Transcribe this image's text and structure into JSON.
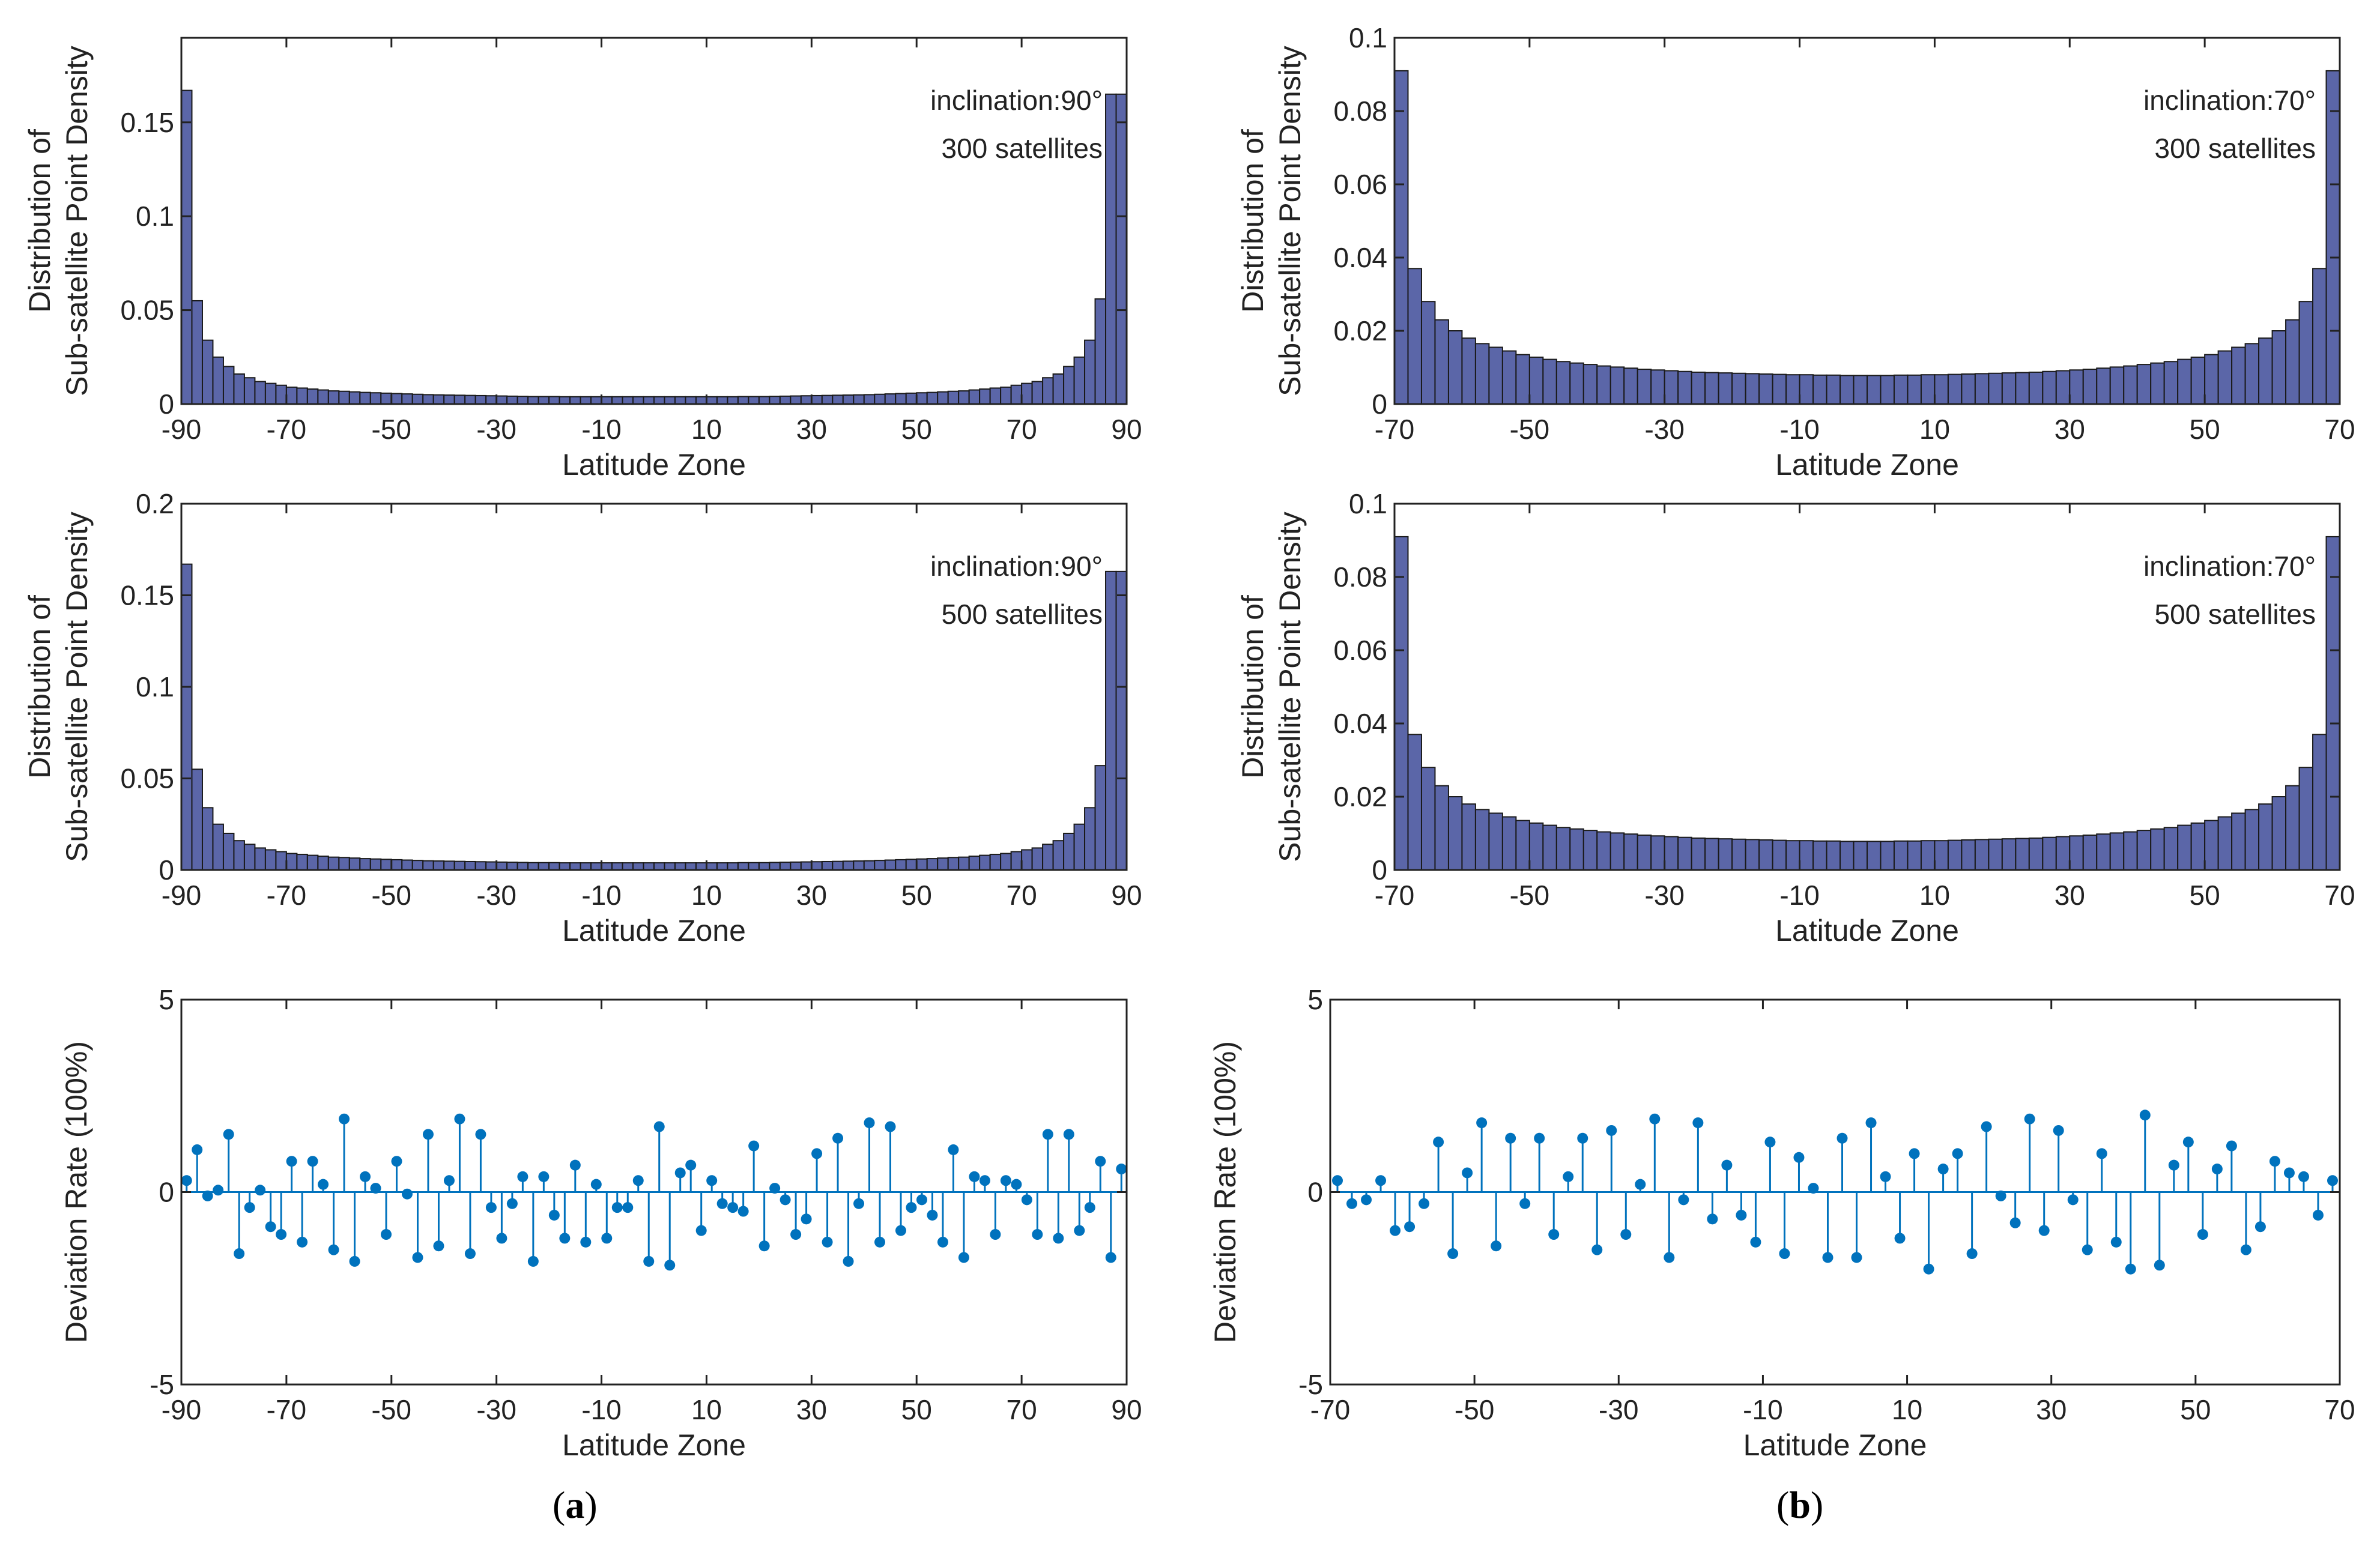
{
  "figure": {
    "panel_labels": [
      {
        "open": "(",
        "letter": "a",
        "close": ")"
      },
      {
        "open": "(",
        "letter": "b",
        "close": ")"
      }
    ]
  },
  "colors": {
    "bar_fill": "#5B66A8",
    "bar_edge": "#1a1a1a",
    "stem": "#0072BD",
    "axis": "#222222"
  },
  "chart_data": [
    {
      "id": "a1",
      "type": "bar",
      "ylabel_lines": [
        "Distribution of",
        "Sub-satellite Point Density"
      ],
      "xlabel": "Latitude Zone",
      "annotations": [
        "inclination:90°",
        "300 satellites"
      ],
      "xlim": [
        -90,
        90
      ],
      "ylim": [
        0,
        0.195
      ],
      "xticks": [
        -90,
        -70,
        -50,
        -30,
        -10,
        10,
        30,
        50,
        70,
        90
      ],
      "xtick_labels": [
        "-90",
        "-70",
        "-50",
        "-30",
        "-10",
        "10",
        "30",
        "50",
        "70",
        "90"
      ],
      "yticks": [
        0,
        0.05,
        0.1,
        0.15
      ],
      "ytick_labels": [
        "0",
        "0.05",
        "0.1",
        "0.15"
      ],
      "x": [
        -89,
        -87,
        -85,
        -83,
        -81,
        -79,
        -77,
        -75,
        -73,
        -71,
        -69,
        -67,
        -65,
        -63,
        -61,
        -59,
        -57,
        -55,
        -53,
        -51,
        -49,
        -47,
        -45,
        -43,
        -41,
        -39,
        -37,
        -35,
        -33,
        -31,
        -29,
        -27,
        -25,
        -23,
        -21,
        -19,
        -17,
        -15,
        -13,
        -11,
        -9,
        -7,
        -5,
        -3,
        -1,
        1,
        3,
        5,
        7,
        9,
        11,
        13,
        15,
        17,
        19,
        21,
        23,
        25,
        27,
        29,
        31,
        33,
        35,
        37,
        39,
        41,
        43,
        45,
        47,
        49,
        51,
        53,
        55,
        57,
        59,
        61,
        63,
        65,
        67,
        69,
        71,
        73,
        75,
        77,
        79,
        81,
        83,
        85,
        87,
        89
      ],
      "values": [
        0.167,
        0.055,
        0.034,
        0.025,
        0.02,
        0.016,
        0.014,
        0.012,
        0.011,
        0.01,
        0.009,
        0.0085,
        0.008,
        0.0075,
        0.007,
        0.0068,
        0.0065,
        0.0062,
        0.006,
        0.0058,
        0.0056,
        0.0054,
        0.0052,
        0.005,
        0.0049,
        0.0048,
        0.0047,
        0.0046,
        0.0045,
        0.0044,
        0.0043,
        0.0042,
        0.0041,
        0.004,
        0.004,
        0.004,
        0.0039,
        0.0039,
        0.0039,
        0.0039,
        0.0039,
        0.0039,
        0.0039,
        0.0039,
        0.0039,
        0.0039,
        0.0039,
        0.0039,
        0.0039,
        0.0039,
        0.0039,
        0.0039,
        0.0039,
        0.004,
        0.004,
        0.004,
        0.0041,
        0.0042,
        0.0043,
        0.0044,
        0.0045,
        0.0046,
        0.0047,
        0.0048,
        0.0049,
        0.005,
        0.0052,
        0.0054,
        0.0056,
        0.0058,
        0.006,
        0.0062,
        0.0065,
        0.0068,
        0.007,
        0.0075,
        0.008,
        0.0085,
        0.009,
        0.01,
        0.011,
        0.012,
        0.014,
        0.016,
        0.02,
        0.025,
        0.034,
        0.056,
        0.165,
        0.165
      ]
    },
    {
      "id": "b1",
      "type": "bar",
      "ylabel_lines": [
        "Distribution of",
        "Sub-satellite Point Density"
      ],
      "xlabel": "Latitude Zone",
      "annotations": [
        "inclination:70°",
        "300 satellites"
      ],
      "xlim": [
        -70,
        70
      ],
      "ylim": [
        0,
        0.1
      ],
      "xticks": [
        -70,
        -50,
        -30,
        -10,
        10,
        30,
        50,
        70
      ],
      "xtick_labels": [
        "-70",
        "-50",
        "-30",
        "-10",
        "10",
        "30",
        "50",
        "70"
      ],
      "yticks": [
        0,
        0.02,
        0.04,
        0.06,
        0.08,
        0.1
      ],
      "ytick_labels": [
        "0",
        "0.02",
        "0.04",
        "0.06",
        "0.08",
        "0.1"
      ],
      "x": [
        -69,
        -67,
        -65,
        -63,
        -61,
        -59,
        -57,
        -55,
        -53,
        -51,
        -49,
        -47,
        -45,
        -43,
        -41,
        -39,
        -37,
        -35,
        -33,
        -31,
        -29,
        -27,
        -25,
        -23,
        -21,
        -19,
        -17,
        -15,
        -13,
        -11,
        -9,
        -7,
        -5,
        -3,
        -1,
        1,
        3,
        5,
        7,
        9,
        11,
        13,
        15,
        17,
        19,
        21,
        23,
        25,
        27,
        29,
        31,
        33,
        35,
        37,
        39,
        41,
        43,
        45,
        47,
        49,
        51,
        53,
        55,
        57,
        59,
        61,
        63,
        65,
        67,
        69
      ],
      "values": [
        0.091,
        0.037,
        0.028,
        0.023,
        0.02,
        0.018,
        0.0165,
        0.0155,
        0.0145,
        0.0135,
        0.0128,
        0.0122,
        0.0116,
        0.0112,
        0.0108,
        0.0104,
        0.0101,
        0.0098,
        0.0095,
        0.0093,
        0.0091,
        0.0089,
        0.0087,
        0.0086,
        0.0085,
        0.0084,
        0.0083,
        0.0082,
        0.0081,
        0.008,
        0.008,
        0.0079,
        0.0079,
        0.0078,
        0.0078,
        0.0078,
        0.0078,
        0.0079,
        0.0079,
        0.008,
        0.008,
        0.0081,
        0.0082,
        0.0083,
        0.0084,
        0.0085,
        0.0086,
        0.0087,
        0.0089,
        0.0091,
        0.0093,
        0.0095,
        0.0098,
        0.0101,
        0.0104,
        0.0108,
        0.0112,
        0.0116,
        0.0122,
        0.0128,
        0.0135,
        0.0145,
        0.0155,
        0.0165,
        0.018,
        0.02,
        0.023,
        0.028,
        0.037,
        0.091
      ]
    },
    {
      "id": "a2",
      "type": "bar",
      "ylabel_lines": [
        "Distribution of",
        "Sub-satellite Point Density"
      ],
      "xlabel": "Latitude Zone",
      "annotations": [
        "inclination:90°",
        "500 satellites"
      ],
      "xlim": [
        -90,
        90
      ],
      "ylim": [
        0,
        0.2
      ],
      "xticks": [
        -90,
        -70,
        -50,
        -30,
        -10,
        10,
        30,
        50,
        70,
        90
      ],
      "xtick_labels": [
        "-90",
        "-70",
        "-50",
        "-30",
        "-10",
        "10",
        "30",
        "50",
        "70",
        "90"
      ],
      "yticks": [
        0,
        0.05,
        0.1,
        0.15,
        0.2
      ],
      "ytick_labels": [
        "0",
        "0.05",
        "0.1",
        "0.15",
        "0.2"
      ],
      "x": [
        -89,
        -87,
        -85,
        -83,
        -81,
        -79,
        -77,
        -75,
        -73,
        -71,
        -69,
        -67,
        -65,
        -63,
        -61,
        -59,
        -57,
        -55,
        -53,
        -51,
        -49,
        -47,
        -45,
        -43,
        -41,
        -39,
        -37,
        -35,
        -33,
        -31,
        -29,
        -27,
        -25,
        -23,
        -21,
        -19,
        -17,
        -15,
        -13,
        -11,
        -9,
        -7,
        -5,
        -3,
        -1,
        1,
        3,
        5,
        7,
        9,
        11,
        13,
        15,
        17,
        19,
        21,
        23,
        25,
        27,
        29,
        31,
        33,
        35,
        37,
        39,
        41,
        43,
        45,
        47,
        49,
        51,
        53,
        55,
        57,
        59,
        61,
        63,
        65,
        67,
        69,
        71,
        73,
        75,
        77,
        79,
        81,
        83,
        85,
        87,
        89
      ],
      "values": [
        0.167,
        0.055,
        0.034,
        0.025,
        0.02,
        0.016,
        0.014,
        0.012,
        0.011,
        0.01,
        0.009,
        0.0085,
        0.008,
        0.0075,
        0.007,
        0.0068,
        0.0065,
        0.0062,
        0.006,
        0.0058,
        0.0056,
        0.0054,
        0.0052,
        0.005,
        0.0049,
        0.0048,
        0.0047,
        0.0046,
        0.0045,
        0.0044,
        0.0043,
        0.0042,
        0.0041,
        0.004,
        0.004,
        0.004,
        0.0039,
        0.0039,
        0.0039,
        0.0039,
        0.0039,
        0.0039,
        0.0039,
        0.0039,
        0.0039,
        0.0039,
        0.0039,
        0.0039,
        0.0039,
        0.0039,
        0.0039,
        0.0039,
        0.0039,
        0.004,
        0.004,
        0.004,
        0.0041,
        0.0042,
        0.0043,
        0.0044,
        0.0045,
        0.0046,
        0.0047,
        0.0048,
        0.0049,
        0.005,
        0.0052,
        0.0054,
        0.0056,
        0.0058,
        0.006,
        0.0062,
        0.0065,
        0.0068,
        0.007,
        0.0075,
        0.008,
        0.0085,
        0.009,
        0.01,
        0.011,
        0.012,
        0.014,
        0.016,
        0.02,
        0.025,
        0.034,
        0.057,
        0.163,
        0.163
      ]
    },
    {
      "id": "b2",
      "type": "bar",
      "ylabel_lines": [
        "Distribution of",
        "Sub-satellite Point Density"
      ],
      "xlabel": "Latitude Zone",
      "annotations": [
        "inclination:70°",
        "500 satellites"
      ],
      "xlim": [
        -70,
        70
      ],
      "ylim": [
        0,
        0.1
      ],
      "xticks": [
        -70,
        -50,
        -30,
        -10,
        10,
        30,
        50,
        70
      ],
      "xtick_labels": [
        "-70",
        "-50",
        "-30",
        "-10",
        "10",
        "30",
        "50",
        "70"
      ],
      "yticks": [
        0,
        0.02,
        0.04,
        0.06,
        0.08,
        0.1
      ],
      "ytick_labels": [
        "0",
        "0.02",
        "0.04",
        "0.06",
        "0.08",
        "0.1"
      ],
      "x": [
        -69,
        -67,
        -65,
        -63,
        -61,
        -59,
        -57,
        -55,
        -53,
        -51,
        -49,
        -47,
        -45,
        -43,
        -41,
        -39,
        -37,
        -35,
        -33,
        -31,
        -29,
        -27,
        -25,
        -23,
        -21,
        -19,
        -17,
        -15,
        -13,
        -11,
        -9,
        -7,
        -5,
        -3,
        -1,
        1,
        3,
        5,
        7,
        9,
        11,
        13,
        15,
        17,
        19,
        21,
        23,
        25,
        27,
        29,
        31,
        33,
        35,
        37,
        39,
        41,
        43,
        45,
        47,
        49,
        51,
        53,
        55,
        57,
        59,
        61,
        63,
        65,
        67,
        69
      ],
      "values": [
        0.091,
        0.037,
        0.028,
        0.023,
        0.02,
        0.018,
        0.0165,
        0.0155,
        0.0145,
        0.0135,
        0.0128,
        0.0122,
        0.0116,
        0.0112,
        0.0108,
        0.0104,
        0.0101,
        0.0098,
        0.0095,
        0.0093,
        0.0091,
        0.0089,
        0.0087,
        0.0086,
        0.0085,
        0.0084,
        0.0083,
        0.0082,
        0.0081,
        0.008,
        0.008,
        0.0079,
        0.0079,
        0.0078,
        0.0078,
        0.0078,
        0.0078,
        0.0079,
        0.0079,
        0.008,
        0.008,
        0.0081,
        0.0082,
        0.0083,
        0.0084,
        0.0085,
        0.0086,
        0.0087,
        0.0089,
        0.0091,
        0.0093,
        0.0095,
        0.0098,
        0.0101,
        0.0104,
        0.0108,
        0.0112,
        0.0116,
        0.0122,
        0.0128,
        0.0135,
        0.0145,
        0.0155,
        0.0165,
        0.018,
        0.02,
        0.023,
        0.028,
        0.037,
        0.091
      ]
    },
    {
      "id": "a3",
      "type": "stem",
      "ylabel_lines": [
        "Deviation Rate (100%)"
      ],
      "xlabel": "Latitude Zone",
      "annotations": [],
      "xlim": [
        -90,
        90
      ],
      "ylim": [
        -5,
        5
      ],
      "xticks": [
        -90,
        -70,
        -50,
        -30,
        -10,
        10,
        30,
        50,
        70,
        90
      ],
      "xtick_labels": [
        "-90",
        "-70",
        "-50",
        "-30",
        "-10",
        "10",
        "30",
        "50",
        "70",
        "90"
      ],
      "yticks": [
        -5,
        0,
        5
      ],
      "ytick_labels": [
        "-5",
        "0",
        "5"
      ],
      "x": [
        -89,
        -87,
        -85,
        -83,
        -81,
        -79,
        -77,
        -75,
        -73,
        -71,
        -69,
        -67,
        -65,
        -63,
        -61,
        -59,
        -57,
        -55,
        -53,
        -51,
        -49,
        -47,
        -45,
        -43,
        -41,
        -39,
        -37,
        -35,
        -33,
        -31,
        -29,
        -27,
        -25,
        -23,
        -21,
        -19,
        -17,
        -15,
        -13,
        -11,
        -9,
        -7,
        -5,
        -3,
        -1,
        1,
        3,
        5,
        7,
        9,
        11,
        13,
        15,
        17,
        19,
        21,
        23,
        25,
        27,
        29,
        31,
        33,
        35,
        37,
        39,
        41,
        43,
        45,
        47,
        49,
        51,
        53,
        55,
        57,
        59,
        61,
        63,
        65,
        67,
        69,
        71,
        73,
        75,
        77,
        79,
        81,
        83,
        85,
        87,
        89
      ],
      "values": [
        0.3,
        1.1,
        -0.1,
        0.05,
        1.5,
        -1.6,
        -0.4,
        0.05,
        -0.9,
        -1.1,
        0.8,
        -1.3,
        0.8,
        0.2,
        -1.5,
        1.9,
        -1.8,
        0.4,
        0.1,
        -1.1,
        0.8,
        -0.05,
        -1.7,
        1.5,
        -1.4,
        0.3,
        1.9,
        -1.6,
        1.5,
        -0.4,
        -1.2,
        -0.3,
        0.4,
        -1.8,
        0.4,
        -0.6,
        -1.2,
        0.7,
        -1.3,
        0.2,
        -1.2,
        -0.4,
        -0.4,
        0.3,
        -1.8,
        1.7,
        -1.9,
        0.5,
        0.7,
        -1.0,
        0.3,
        -0.3,
        -0.4,
        -0.5,
        1.2,
        -1.4,
        0.1,
        -0.2,
        -1.1,
        -0.7,
        1.0,
        -1.3,
        1.4,
        -1.8,
        -0.3,
        1.8,
        -1.3,
        1.7,
        -1.0,
        -0.4,
        -0.2,
        -0.6,
        -1.3,
        1.1,
        -1.7,
        0.4,
        0.3,
        -1.1,
        0.3,
        0.2,
        -0.2,
        -1.1,
        1.5,
        -1.2,
        1.5,
        -1.0,
        -0.4,
        0.8,
        -1.7,
        0.6
      ]
    },
    {
      "id": "b3",
      "type": "stem",
      "ylabel_lines": [
        "Deviation Rate (100%)"
      ],
      "xlabel": "Latitude Zone",
      "annotations": [],
      "xlim": [
        -70,
        70
      ],
      "ylim": [
        -5,
        5
      ],
      "xticks": [
        -70,
        -50,
        -30,
        -10,
        10,
        30,
        50,
        70
      ],
      "xtick_labels": [
        "-70",
        "-50",
        "-30",
        "-10",
        "10",
        "30",
        "50",
        "70"
      ],
      "yticks": [
        -5,
        0,
        5
      ],
      "ytick_labels": [
        "-5",
        "0",
        "5"
      ],
      "x": [
        -69,
        -67,
        -65,
        -63,
        -61,
        -59,
        -57,
        -55,
        -53,
        -51,
        -49,
        -47,
        -45,
        -43,
        -41,
        -39,
        -37,
        -35,
        -33,
        -31,
        -29,
        -27,
        -25,
        -23,
        -21,
        -19,
        -17,
        -15,
        -13,
        -11,
        -9,
        -7,
        -5,
        -3,
        -1,
        1,
        3,
        5,
        7,
        9,
        11,
        13,
        15,
        17,
        19,
        21,
        23,
        25,
        27,
        29,
        31,
        33,
        35,
        37,
        39,
        41,
        43,
        45,
        47,
        49,
        51,
        53,
        55,
        57,
        59,
        61,
        63,
        65,
        67,
        69
      ],
      "values": [
        0.3,
        -0.3,
        -0.2,
        0.3,
        -1.0,
        -0.9,
        -0.3,
        1.3,
        -1.6,
        0.5,
        1.8,
        -1.4,
        1.4,
        -0.3,
        1.4,
        -1.1,
        0.4,
        1.4,
        -1.5,
        1.6,
        -1.1,
        0.2,
        1.9,
        -1.7,
        -0.2,
        1.8,
        -0.7,
        0.7,
        -0.6,
        -1.3,
        1.3,
        -1.6,
        0.9,
        0.1,
        -1.7,
        1.4,
        -1.7,
        1.8,
        0.4,
        -1.2,
        1.0,
        -2.0,
        0.6,
        1.0,
        -1.6,
        1.7,
        -0.1,
        -0.8,
        1.9,
        -1.0,
        1.6,
        -0.2,
        -1.5,
        1.0,
        -1.3,
        -2.0,
        2.0,
        -1.9,
        0.7,
        1.3,
        -1.1,
        0.6,
        1.2,
        -1.5,
        -0.9,
        0.8,
        0.5,
        0.4,
        -0.6,
        0.3
      ]
    }
  ]
}
